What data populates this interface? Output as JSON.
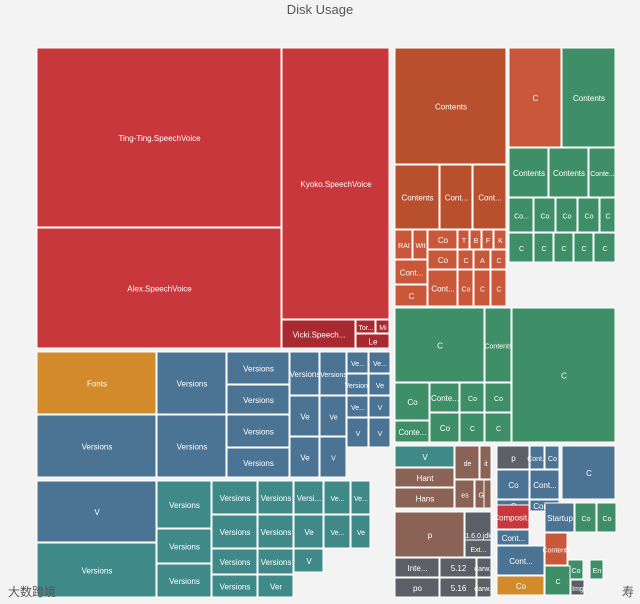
{
  "chart_data": {
    "type": "treemap",
    "title": "Disk Usage",
    "cells": [
      {
        "label": "Ting-Ting.SpeechVoice",
        "color": "#c8373b"
      },
      {
        "label": "Alex.SpeechVoice",
        "color": "#c8373b"
      },
      {
        "label": "Kyoko.SpeechVoice",
        "color": "#c8373b"
      },
      {
        "label": "Vicki.Speech...",
        "color": "#a82a30"
      },
      {
        "label": "Tor...",
        "color": "#a82a30"
      },
      {
        "label": "Mi",
        "color": "#a82a30"
      },
      {
        "label": "Le",
        "color": "#a82a30"
      },
      {
        "label": "Contents",
        "color": "#b8502d"
      },
      {
        "label": "Contents",
        "color": "#b8502d"
      },
      {
        "label": "Cont...",
        "color": "#b8502d"
      },
      {
        "label": "Cont...",
        "color": "#b8502d"
      },
      {
        "label": "RAI",
        "color": "#c9573a"
      },
      {
        "label": "Wit",
        "color": "#c9573a"
      },
      {
        "label": "Co",
        "color": "#c9573a"
      },
      {
        "label": "T",
        "color": "#c9573a"
      },
      {
        "label": "B",
        "color": "#c9573a"
      },
      {
        "label": "F",
        "color": "#c9573a"
      },
      {
        "label": "K",
        "color": "#c9573a"
      },
      {
        "label": "Cont...",
        "color": "#c9573a"
      },
      {
        "label": "Co",
        "color": "#c9573a"
      },
      {
        "label": "C",
        "color": "#c9573a"
      },
      {
        "label": "A",
        "color": "#c9573a"
      },
      {
        "label": "C",
        "color": "#c9573a"
      },
      {
        "label": "C",
        "color": "#c9573a"
      },
      {
        "label": "Cont...",
        "color": "#c9573a"
      },
      {
        "label": "Co",
        "color": "#c9573a"
      },
      {
        "label": "C",
        "color": "#c9573a"
      },
      {
        "label": "C",
        "color": "#c9573a"
      },
      {
        "label": "C",
        "color": "#c9573a"
      },
      {
        "label": "Contents",
        "color": "#3e8f67"
      },
      {
        "label": "Contents",
        "color": "#3e8f67"
      },
      {
        "label": "Contents",
        "color": "#3e8f67"
      },
      {
        "label": "Conte...",
        "color": "#3e8f67"
      },
      {
        "label": "Co...",
        "color": "#3e8f67"
      },
      {
        "label": "Co",
        "color": "#3e8f67"
      },
      {
        "label": "Co",
        "color": "#3e8f67"
      },
      {
        "label": "Co",
        "color": "#3e8f67"
      },
      {
        "label": "C",
        "color": "#3e8f67"
      },
      {
        "label": "C",
        "color": "#3e8f67"
      },
      {
        "label": "C",
        "color": "#3e8f67"
      },
      {
        "label": "C",
        "color": "#3e8f67"
      },
      {
        "label": "C",
        "color": "#3e8f67"
      },
      {
        "label": "C",
        "color": "#3e8f67"
      },
      {
        "label": "C",
        "color": "#3e8f67"
      },
      {
        "label": "Contents",
        "color": "#3e8f67"
      },
      {
        "label": "Co",
        "color": "#3e8f67"
      },
      {
        "label": "Conte...",
        "color": "#3e8f67"
      },
      {
        "label": "Conte...",
        "color": "#3e8f67"
      },
      {
        "label": "Co",
        "color": "#3e8f67"
      },
      {
        "label": "Co",
        "color": "#3e8f67"
      },
      {
        "label": "Co",
        "color": "#3e8f67"
      },
      {
        "label": "C",
        "color": "#3e8f67"
      },
      {
        "label": "C",
        "color": "#3e8f67"
      },
      {
        "label": "C",
        "color": "#3e8f67"
      },
      {
        "label": "Fonts",
        "color": "#d28a2a"
      },
      {
        "label": "Versions",
        "color": "#4b7393"
      },
      {
        "label": "Versions",
        "color": "#4b7393"
      },
      {
        "label": "Versions",
        "color": "#4b7393"
      },
      {
        "label": "Versions",
        "color": "#4b7393"
      },
      {
        "label": "Versions",
        "color": "#4b7393"
      },
      {
        "label": "Versions",
        "color": "#4b7393"
      },
      {
        "label": "Versions",
        "color": "#4b7393"
      },
      {
        "label": "Versions",
        "color": "#4b7393"
      },
      {
        "label": "Versions",
        "color": "#4b7393"
      },
      {
        "label": "Ve...",
        "color": "#4b7393"
      },
      {
        "label": "Ve...",
        "color": "#4b7393"
      },
      {
        "label": "Ve",
        "color": "#4b7393"
      },
      {
        "label": "Ve",
        "color": "#4b7393"
      },
      {
        "label": "Versions",
        "color": "#4b7393"
      },
      {
        "label": "Ve",
        "color": "#4b7393"
      },
      {
        "label": "Ve",
        "color": "#4b7393"
      },
      {
        "label": "V",
        "color": "#4b7393"
      },
      {
        "label": "Ve...",
        "color": "#4b7393"
      },
      {
        "label": "V",
        "color": "#4b7393"
      },
      {
        "label": "V",
        "color": "#4b7393"
      },
      {
        "label": "V",
        "color": "#4b7393"
      },
      {
        "label": "V",
        "color": "#4b7393"
      },
      {
        "label": "Versions",
        "color": "#3f8a89"
      },
      {
        "label": "Versions",
        "color": "#3f8a89"
      },
      {
        "label": "Versions",
        "color": "#3f8a89"
      },
      {
        "label": "Versions",
        "color": "#3f8a89"
      },
      {
        "label": "Versions",
        "color": "#3f8a89"
      },
      {
        "label": "Versions",
        "color": "#3f8a89"
      },
      {
        "label": "Versions",
        "color": "#3f8a89"
      },
      {
        "label": "Versions",
        "color": "#3f8a89"
      },
      {
        "label": "Versions",
        "color": "#3f8a89"
      },
      {
        "label": "Versions",
        "color": "#3f8a89"
      },
      {
        "label": "Versions",
        "color": "#3f8a89"
      },
      {
        "label": "Versi...",
        "color": "#3f8a89"
      },
      {
        "label": "Ve...",
        "color": "#3f8a89"
      },
      {
        "label": "Ve...",
        "color": "#3f8a89"
      },
      {
        "label": "Ve",
        "color": "#3f8a89"
      },
      {
        "label": "Ve...",
        "color": "#3f8a89"
      },
      {
        "label": "Ve",
        "color": "#3f8a89"
      },
      {
        "label": "Ver",
        "color": "#3f8a89"
      },
      {
        "label": "V",
        "color": "#3f8a89"
      },
      {
        "label": "V",
        "color": "#3f8a89"
      },
      {
        "label": "Hant",
        "color": "#8a6356"
      },
      {
        "label": "Hans",
        "color": "#8a6356"
      },
      {
        "label": "de",
        "color": "#8a6356"
      },
      {
        "label": "it",
        "color": "#8a6356"
      },
      {
        "label": "es",
        "color": "#8a6356"
      },
      {
        "label": "GB",
        "color": "#8a6356"
      },
      {
        "label": "US",
        "color": "#8a6356"
      },
      {
        "label": "p",
        "color": "#8a6356"
      },
      {
        "label": "1.6.0.jdk",
        "color": "#5d5f66"
      },
      {
        "label": "Ext...",
        "color": "#5d5f66"
      },
      {
        "label": "Inte...",
        "color": "#5d5f66"
      },
      {
        "label": "5.12",
        "color": "#5d5f66"
      },
      {
        "label": "darw...",
        "color": "#5d5f66"
      },
      {
        "label": "po",
        "color": "#5d5f66"
      },
      {
        "label": "5.16",
        "color": "#5d5f66"
      },
      {
        "label": "darw...",
        "color": "#5d5f66"
      },
      {
        "label": "p",
        "color": "#5d5f66"
      },
      {
        "label": "Cont...",
        "color": "#4b7393"
      },
      {
        "label": "Co",
        "color": "#4b7393"
      },
      {
        "label": "Co",
        "color": "#4b7393"
      },
      {
        "label": "Cont...",
        "color": "#4b7393"
      },
      {
        "label": "C",
        "color": "#4b7393"
      },
      {
        "label": "Cont...",
        "color": "#4b7393"
      },
      {
        "label": "C",
        "color": "#4b7393"
      },
      {
        "label": "Composit...",
        "color": "#c8373b"
      },
      {
        "label": "Cont...",
        "color": "#4b7393"
      },
      {
        "label": "Cont...",
        "color": "#4b7393"
      },
      {
        "label": "Startup",
        "color": "#4b7393"
      },
      {
        "label": "Co",
        "color": "#3e8f67"
      },
      {
        "label": "Co",
        "color": "#3e8f67"
      },
      {
        "label": "Co",
        "color": "#d28a2a"
      },
      {
        "label": "Contents",
        "color": "#c9573a"
      },
      {
        "label": "Co",
        "color": "#3e8f67"
      },
      {
        "label": "En",
        "color": "#3e8f67"
      },
      {
        "label": "C",
        "color": "#3e8f67"
      },
      {
        "label": "Img",
        "color": "#5d5f66"
      },
      {
        "label": "Im",
        "color": "#5d5f66"
      }
    ]
  },
  "watermarks": {
    "left": "大数跨境",
    "right": "寿"
  }
}
